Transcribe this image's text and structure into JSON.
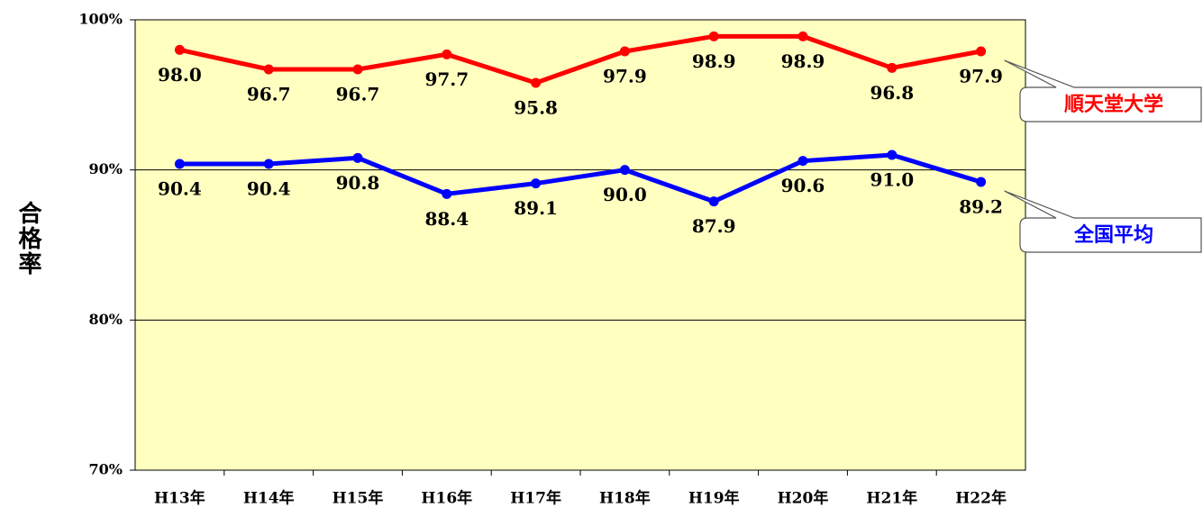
{
  "chart_data": {
    "type": "line",
    "y_label": "合格率",
    "categories": [
      "H13年",
      "H14年",
      "H15年",
      "H16年",
      "H17年",
      "H18年",
      "H19年",
      "H20年",
      "H21年",
      "H22年"
    ],
    "ylim": [
      70,
      100
    ],
    "yticks": [
      {
        "value": 70,
        "label": "70%"
      },
      {
        "value": 80,
        "label": "80%"
      },
      {
        "value": 90,
        "label": "90%"
      },
      {
        "value": 100,
        "label": "100%"
      }
    ],
    "grid": true,
    "plot_background": "#ffffc0",
    "series": [
      {
        "name": "順天堂大学",
        "color": "#ff0000",
        "values": [
          98.0,
          96.7,
          96.7,
          97.7,
          95.8,
          97.9,
          98.9,
          98.9,
          96.8,
          97.9
        ],
        "value_labels": [
          "98.0",
          "96.7",
          "96.7",
          "97.7",
          "95.8",
          "97.9",
          "98.9",
          "98.9",
          "96.8",
          "97.9"
        ]
      },
      {
        "name": "全国平均",
        "color": "#0000ff",
        "values": [
          90.4,
          90.4,
          90.8,
          88.4,
          89.1,
          90.0,
          87.9,
          90.6,
          91.0,
          89.2
        ],
        "value_labels": [
          "90.4",
          "90.4",
          "90.8",
          "88.4",
          "89.1",
          "90.0",
          "87.9",
          "90.6",
          "91.0",
          "89.2"
        ]
      }
    ]
  }
}
